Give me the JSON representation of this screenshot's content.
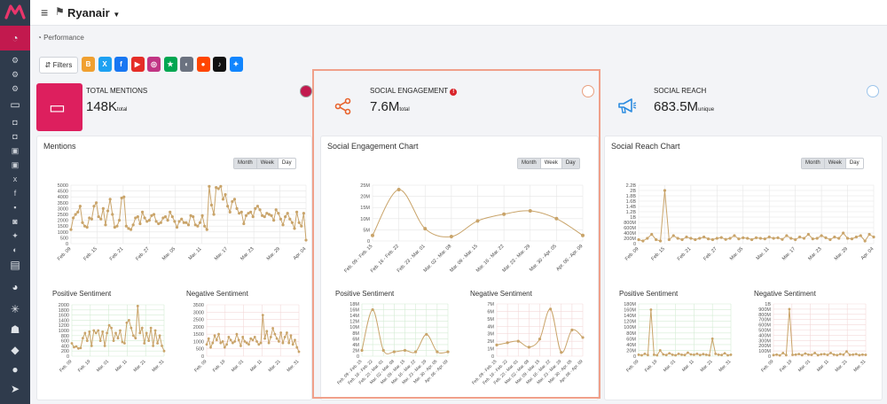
{
  "app": {
    "brand": "Ryanair",
    "breadcrumb": "Performance",
    "filters_label": "Filters",
    "colors": {
      "accent": "#c2194e",
      "line": "#c9a46a",
      "highlight": "#f0a08a",
      "sidebar": "#2f3b4c"
    }
  },
  "social_buttons": [
    {
      "name": "blog-button",
      "glyph": "B",
      "color": "#f0a030"
    },
    {
      "name": "x-button",
      "glyph": "X",
      "color": "#1da1f2"
    },
    {
      "name": "facebook-button",
      "glyph": "f",
      "color": "#1877f2"
    },
    {
      "name": "youtube-button",
      "glyph": "▶",
      "color": "#e52d27"
    },
    {
      "name": "instagram-button",
      "glyph": "◎",
      "color": "#c13584"
    },
    {
      "name": "trustpilot-button",
      "glyph": "★",
      "color": "#00a651"
    },
    {
      "name": "review-button",
      "glyph": "◐",
      "color": "#6b7280"
    },
    {
      "name": "reddit-button",
      "glyph": "●",
      "color": "#ff4500"
    },
    {
      "name": "tiktok-button",
      "glyph": "♪",
      "color": "#111111"
    },
    {
      "name": "bluesky-button",
      "glyph": "✦",
      "color": "#1185fe"
    }
  ],
  "kpis": [
    {
      "title": "TOTAL MENTIONS",
      "value": "148K",
      "unit": "total",
      "icon": "chat-icon"
    },
    {
      "title": "SOCIAL ENGAGEMENT",
      "value": "7.6M",
      "unit": "total",
      "icon": "share-icon",
      "alert": "!"
    },
    {
      "title": "SOCIAL REACH",
      "value": "683.5M",
      "unit": "unique",
      "icon": "megaphone-icon"
    }
  ],
  "panels": {
    "mentions": {
      "title": "Mentions",
      "range_tabs": [
        "Month",
        "Week",
        "Day"
      ]
    },
    "engagement": {
      "title": "Social Engagement Chart",
      "range_tabs": [
        "Month",
        "Week",
        "Day"
      ]
    },
    "reach": {
      "title": "Social Reach Chart",
      "range_tabs": [
        "Month",
        "Week",
        "Day"
      ]
    },
    "positive_label": "Positive Sentiment",
    "negative_label": "Negative Sentiment"
  },
  "chart_data": [
    {
      "id": "mentions",
      "type": "line",
      "ylim": [
        0,
        5000
      ],
      "yticks": [
        "5000",
        "4500",
        "4000",
        "3500",
        "3000",
        "2500",
        "2000",
        "1500",
        "1000",
        "500",
        "0"
      ],
      "x_tick_labels": [
        "Feb. 09",
        "Feb. 15",
        "Feb. 21",
        "Feb. 27",
        "Mar. 05",
        "Mar. 11",
        "Mar. 17",
        "Mar. 23",
        "Mar. 29",
        "Apr. 04"
      ],
      "values": [
        1200,
        2200,
        2500,
        2700,
        3200,
        1800,
        1500,
        1400,
        2200,
        2100,
        3200,
        3500,
        2300,
        2100,
        3000,
        1600,
        2800,
        3800,
        2500,
        1400,
        1500,
        2000,
        3900,
        4000,
        1500,
        1300,
        1200,
        1600,
        2200,
        2300,
        1700,
        2700,
        2200,
        1900,
        2000,
        2400,
        2500,
        1900,
        1700,
        1800,
        2200,
        2300,
        2000,
        2700,
        2300,
        1900,
        1400,
        1900,
        2100,
        1800,
        1800,
        1600,
        2400,
        2300,
        1600,
        1500,
        1800,
        2400,
        1500,
        1200,
        4900,
        3300,
        2500,
        4800,
        4700,
        4900,
        3800,
        4200,
        3200,
        2700,
        3600,
        3800,
        3000,
        2600,
        2700,
        1700,
        2400,
        2600,
        2700,
        2300,
        3000,
        3200,
        2900,
        2400,
        2300,
        2600,
        2500,
        2400,
        2000,
        2900,
        2600,
        2100,
        1600,
        2300,
        2600,
        2100,
        1800,
        1300,
        2700,
        1800,
        1500,
        2600,
        300
      ]
    },
    {
      "id": "mentions-positive",
      "type": "line",
      "ylim": [
        0,
        2000
      ],
      "yticks": [
        "2000",
        "1800",
        "1600",
        "1400",
        "1200",
        "1000",
        "800",
        "600",
        "400",
        "200",
        "0"
      ],
      "x_tick_labels": [
        "Feb. 09",
        "Feb. 19",
        "Mar. 01",
        "Mar. 11",
        "Mar. 21",
        "Mar. 31"
      ],
      "values": [
        500,
        350,
        380,
        300,
        320,
        700,
        900,
        600,
        950,
        400,
        1000,
        900,
        1000,
        600,
        950,
        400,
        900,
        1200,
        1100,
        600,
        900,
        700,
        1000,
        550,
        500,
        1300,
        1400,
        1100,
        800,
        700,
        1950,
        900,
        1100,
        500,
        900,
        600,
        1100,
        400,
        1000,
        500,
        800,
        400,
        200
      ]
    },
    {
      "id": "mentions-negative",
      "type": "line",
      "ylim": [
        0,
        3500
      ],
      "yticks": [
        "3500",
        "3000",
        "2500",
        "2000",
        "1500",
        "1000",
        "500",
        "0"
      ],
      "x_tick_labels": [
        "Feb. 09",
        "Feb. 19",
        "Mar. 01",
        "Mar. 11",
        "Mar. 21",
        "Mar. 31"
      ],
      "values": [
        800,
        1200,
        600,
        900,
        1400,
        1100,
        1500,
        900,
        1000,
        600,
        800,
        1300,
        1100,
        900,
        1000,
        1500,
        1100,
        700,
        1300,
        1000,
        900,
        800,
        1200,
        1100,
        1300,
        1000,
        800,
        900,
        2800,
        1200,
        1700,
        900,
        1300,
        1900,
        1500,
        1200,
        1000,
        1600,
        900,
        1300,
        1600,
        900,
        1400,
        800,
        1100,
        600,
        300
      ]
    },
    {
      "id": "engagement",
      "type": "line",
      "ylim": [
        0,
        25000000
      ],
      "yticks": [
        "25M",
        "20M",
        "15M",
        "10M",
        "5M",
        "0"
      ],
      "categories": [
        "Feb. 09 - Feb. 15",
        "Feb. 16 - Feb. 22",
        "Feb. 23 - Mar. 01",
        "Mar. 02 - Mar. 08",
        "Mar. 09 - Mar. 15",
        "Mar. 16 - Mar. 22",
        "Mar. 23 - Mar. 29",
        "Mar. 30 - Apr. 05",
        "Apr. 06 - Apr. 09"
      ],
      "values": [
        2500000,
        23000000,
        5500000,
        2000000,
        9000000,
        12000000,
        13500000,
        10000000,
        2500000
      ]
    },
    {
      "id": "engagement-positive",
      "type": "line",
      "ylim": [
        0,
        18000000
      ],
      "yticks": [
        "18M",
        "16M",
        "14M",
        "12M",
        "10M",
        "8M",
        "6M",
        "4M",
        "2M",
        "0"
      ],
      "categories": [
        "Feb. 09 - Feb. 15",
        "Feb. 16 - Feb. 22",
        "Feb. 23 - Mar. 01",
        "Mar. 02 - Mar. 08",
        "Mar. 09 - Mar. 15",
        "Mar. 16 - Mar. 22",
        "Mar. 23 - Mar. 29",
        "Mar. 30 - Apr. 05",
        "Apr. 06 - Apr. 09"
      ],
      "values": [
        2000000,
        16000000,
        2000000,
        1500000,
        2000000,
        1500000,
        7500000,
        1500000,
        1500000
      ]
    },
    {
      "id": "engagement-negative",
      "type": "line",
      "ylim": [
        0,
        7000000
      ],
      "yticks": [
        "7M",
        "6M",
        "5M",
        "4M",
        "3M",
        "2M",
        "1M",
        "0"
      ],
      "categories": [
        "Feb. 09 - Feb. 15",
        "Feb. 16 - Feb. 22",
        "Feb. 23 - Mar. 01",
        "Mar. 02 - Mar. 08",
        "Mar. 09 - Mar. 15",
        "Mar. 16 - Mar. 22",
        "Mar. 23 - Mar. 29",
        "Mar. 30 - Apr. 05",
        "Apr. 06 - Apr. 09"
      ],
      "values": [
        1500000,
        1800000,
        2000000,
        1200000,
        2300000,
        6300000,
        500000,
        3500000,
        2500000
      ]
    },
    {
      "id": "reach",
      "type": "line",
      "ylim": [
        0,
        2200000000
      ],
      "yticks": [
        "2.2B",
        "2B",
        "1.8B",
        "1.6B",
        "1.4B",
        "1.2B",
        "1B",
        "800M",
        "600M",
        "400M",
        "200M",
        "0"
      ],
      "x_tick_labels": [
        "Feb. 09",
        "Feb. 15",
        "Feb. 21",
        "Feb. 27",
        "Mar. 05",
        "Mar. 11",
        "Mar. 17",
        "Mar. 23",
        "Mar. 29",
        "Apr. 04"
      ],
      "values": [
        150000000,
        100000000,
        200000000,
        350000000,
        150000000,
        100000000,
        2000000000,
        150000000,
        300000000,
        200000000,
        150000000,
        250000000,
        200000000,
        150000000,
        200000000,
        250000000,
        180000000,
        150000000,
        200000000,
        230000000,
        160000000,
        200000000,
        300000000,
        180000000,
        220000000,
        200000000,
        150000000,
        220000000,
        200000000,
        180000000,
        250000000,
        200000000,
        220000000,
        160000000,
        300000000,
        200000000,
        150000000,
        250000000,
        200000000,
        350000000,
        180000000,
        200000000,
        300000000,
        220000000,
        150000000,
        250000000,
        200000000,
        400000000,
        200000000,
        180000000,
        250000000,
        300000000,
        100000000,
        350000000,
        250000000
      ]
    },
    {
      "id": "reach-positive",
      "type": "line",
      "ylim": [
        0,
        180000000
      ],
      "yticks": [
        "180M",
        "160M",
        "140M",
        "120M",
        "100M",
        "80M",
        "60M",
        "40M",
        "20M",
        "0"
      ],
      "x_tick_labels": [
        "Feb. 09",
        "Feb. 19",
        "Mar. 01",
        "Mar. 11",
        "Mar. 21",
        "Mar. 31"
      ],
      "values": [
        5000000,
        3000000,
        8000000,
        4000000,
        160000000,
        5000000,
        3000000,
        20000000,
        6000000,
        4000000,
        10000000,
        5000000,
        3000000,
        8000000,
        5000000,
        4000000,
        12000000,
        6000000,
        5000000,
        8000000,
        4000000,
        7000000,
        5000000,
        3000000,
        60000000,
        8000000,
        5000000,
        4000000,
        10000000,
        3000000,
        5000000
      ]
    },
    {
      "id": "reach-negative",
      "type": "line",
      "ylim": [
        0,
        1000000000
      ],
      "yticks": [
        "1B",
        "900M",
        "800M",
        "700M",
        "600M",
        "500M",
        "400M",
        "300M",
        "200M",
        "100M",
        "0"
      ],
      "x_tick_labels": [
        "Feb. 09",
        "Feb. 19",
        "Mar. 01",
        "Mar. 11",
        "Mar. 21",
        "Mar. 31"
      ],
      "values": [
        20000000,
        30000000,
        15000000,
        60000000,
        20000000,
        900000000,
        25000000,
        30000000,
        40000000,
        20000000,
        50000000,
        30000000,
        25000000,
        60000000,
        20000000,
        35000000,
        40000000,
        25000000,
        60000000,
        30000000,
        20000000,
        40000000,
        30000000,
        90000000,
        25000000,
        30000000,
        40000000,
        20000000,
        30000000,
        25000000
      ]
    }
  ]
}
